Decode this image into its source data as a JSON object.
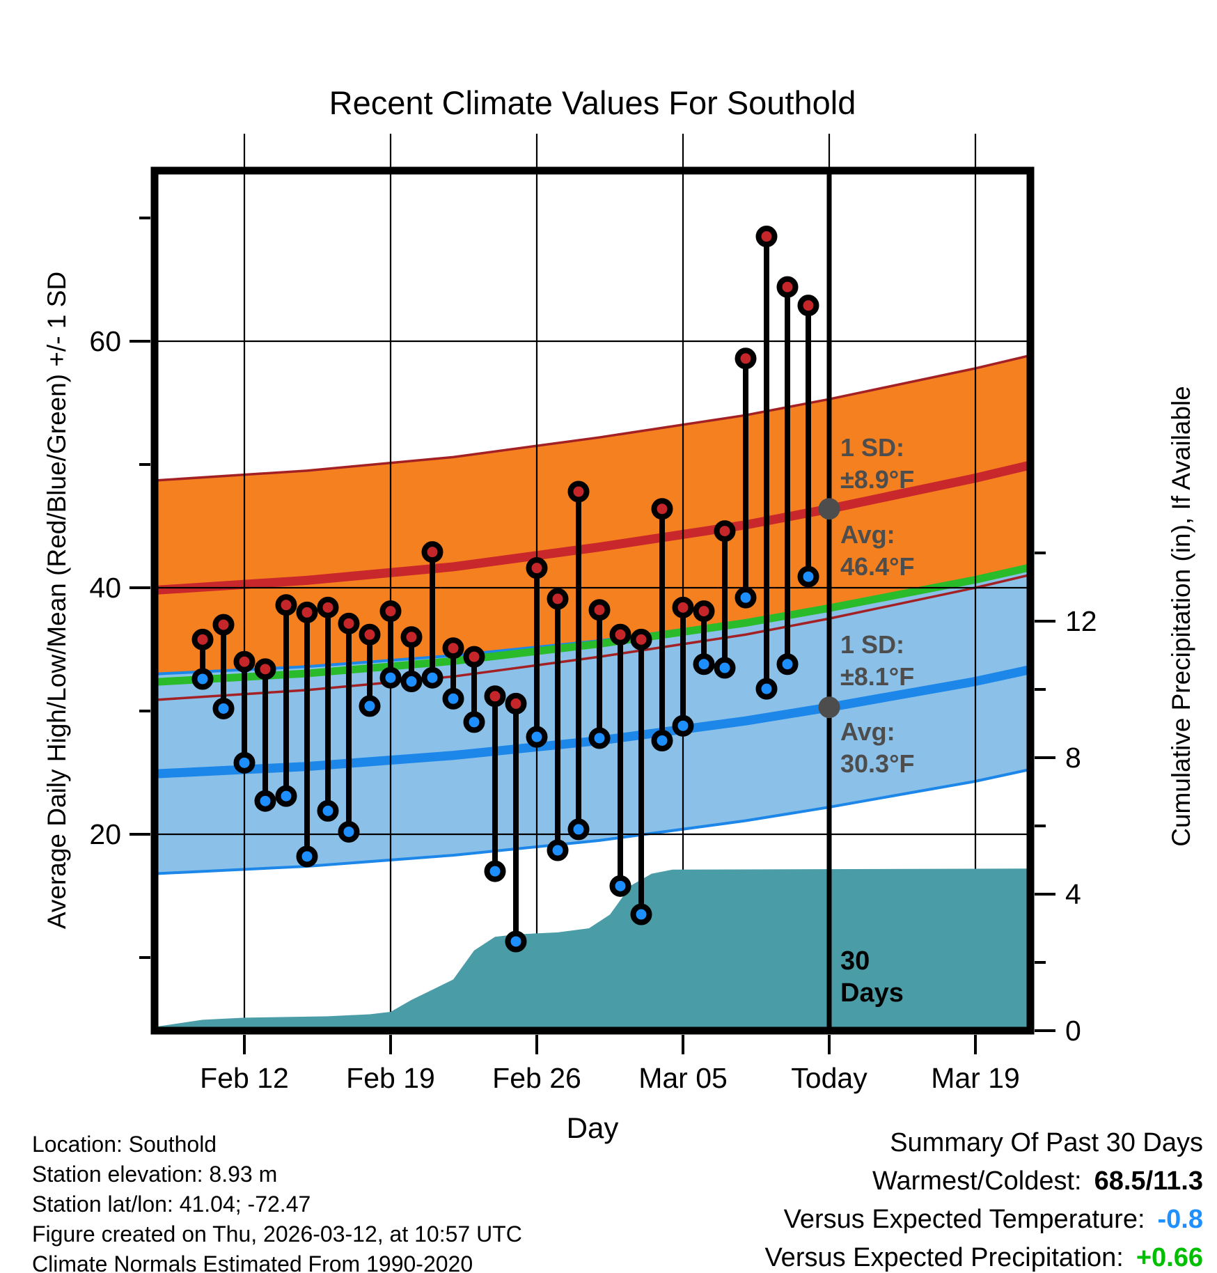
{
  "chart_data": {
    "type": "line",
    "subtype": "climate-daily-range-stems-with-climatology-bands-and-cumulative-precip",
    "title": "Recent Climate Values For Southold",
    "xlabel": "Day",
    "ylabel_left": "Average Daily High/Low/Mean (Red/Blue/Green) +/- 1 SD",
    "ylabel_right": "Cumulative Precipitation (in), If Available",
    "grid": "weekly vertical + 20F horizontal",
    "legend_position": "none",
    "x_ticks": [
      {
        "label": "Feb 12",
        "day_index": 2
      },
      {
        "label": "Feb 19",
        "day_index": 9
      },
      {
        "label": "Feb 26",
        "day_index": 16
      },
      {
        "label": "Mar 05",
        "day_index": 23
      },
      {
        "label": "Today",
        "day_index": 30
      },
      {
        "label": "Mar 19",
        "day_index": 37
      }
    ],
    "temp_axis": {
      "range_f": [
        4.1,
        73.9
      ],
      "major_ticks_labeled": [
        60,
        40,
        20
      ],
      "minor_ticks": [
        70,
        50,
        30,
        10
      ],
      "gridline_temps": [
        60,
        40,
        20
      ]
    },
    "precip_axis": {
      "major_ticks_labeled": [
        12,
        8,
        4,
        0
      ],
      "minor_ticks": [
        14,
        10,
        6,
        2
      ],
      "zero_at_plot_bottom": true
    },
    "days": [
      {
        "date": "Feb 10",
        "high": 35.8,
        "low": 32.6
      },
      {
        "date": "Feb 11",
        "high": 37.0,
        "low": 30.2
      },
      {
        "date": "Feb 12",
        "high": 34.0,
        "low": 25.8
      },
      {
        "date": "Feb 13",
        "high": 33.4,
        "low": 22.7
      },
      {
        "date": "Feb 14",
        "high": 38.6,
        "low": 23.1
      },
      {
        "date": "Feb 15",
        "high": 38.0,
        "low": 18.2
      },
      {
        "date": "Feb 16",
        "high": 38.4,
        "low": 21.9
      },
      {
        "date": "Feb 17",
        "high": 37.1,
        "low": 20.2
      },
      {
        "date": "Feb 18",
        "high": 36.2,
        "low": 30.4
      },
      {
        "date": "Feb 19",
        "high": 38.1,
        "low": 32.7
      },
      {
        "date": "Feb 20",
        "high": 36.0,
        "low": 32.4
      },
      {
        "date": "Feb 21",
        "high": 42.9,
        "low": 32.7
      },
      {
        "date": "Feb 22",
        "high": 35.1,
        "low": 31.0
      },
      {
        "date": "Feb 23",
        "high": 34.4,
        "low": 29.1
      },
      {
        "date": "Feb 24",
        "high": 31.2,
        "low": 17.0
      },
      {
        "date": "Feb 25",
        "high": 30.6,
        "low": 11.3
      },
      {
        "date": "Feb 26",
        "high": 41.6,
        "low": 27.9
      },
      {
        "date": "Feb 27",
        "high": 39.1,
        "low": 18.7
      },
      {
        "date": "Feb 28",
        "high": 47.8,
        "low": 20.4
      },
      {
        "date": "Mar 01",
        "high": 38.2,
        "low": 27.8
      },
      {
        "date": "Mar 02",
        "high": 36.2,
        "low": 15.8
      },
      {
        "date": "Mar 03",
        "high": 35.8,
        "low": 13.5
      },
      {
        "date": "Mar 04",
        "high": 46.4,
        "low": 27.6
      },
      {
        "date": "Mar 05",
        "high": 38.4,
        "low": 28.8
      },
      {
        "date": "Mar 06",
        "high": 38.1,
        "low": 33.8
      },
      {
        "date": "Mar 07",
        "high": 44.6,
        "low": 33.5
      },
      {
        "date": "Mar 08",
        "high": 58.6,
        "low": 39.2
      },
      {
        "date": "Mar 09",
        "high": 68.5,
        "low": 31.8
      },
      {
        "date": "Mar 10",
        "high": 64.4,
        "low": 33.8
      },
      {
        "date": "Mar 11",
        "high": 62.9,
        "low": 40.9
      }
    ],
    "climatology": {
      "sd_high_f": 8.9,
      "sd_low_f": 8.1,
      "high_mean_points": [
        [
          -2.3,
          39.8
        ],
        [
          5,
          40.6
        ],
        [
          12,
          41.7
        ],
        [
          19,
          43.3
        ],
        [
          26,
          45.1
        ],
        [
          30,
          46.4
        ],
        [
          37,
          48.9
        ],
        [
          40,
          50.1
        ]
      ],
      "low_mean_points": [
        [
          -2.3,
          24.9
        ],
        [
          5,
          25.5
        ],
        [
          12,
          26.4
        ],
        [
          19,
          27.6
        ],
        [
          26,
          29.2
        ],
        [
          30,
          30.3
        ],
        [
          37,
          32.4
        ],
        [
          40,
          33.5
        ]
      ]
    },
    "precip_cumulative_points": [
      [
        -2.4,
        0.1
      ],
      [
        0,
        0.32
      ],
      [
        2,
        0.38
      ],
      [
        6,
        0.42
      ],
      [
        8,
        0.48
      ],
      [
        9,
        0.55
      ],
      [
        10,
        0.9
      ],
      [
        11,
        1.2
      ],
      [
        12,
        1.5
      ],
      [
        13,
        2.35
      ],
      [
        14,
        2.75
      ],
      [
        15,
        2.82
      ],
      [
        17,
        2.88
      ],
      [
        18.5,
        3.0
      ],
      [
        19.5,
        3.4
      ],
      [
        20.5,
        4.25
      ],
      [
        21.5,
        4.6
      ],
      [
        22.5,
        4.72
      ],
      [
        39.7,
        4.75
      ]
    ],
    "annotations": {
      "high": {
        "sd_label": "1 SD:",
        "sd_value": "±8.9°F",
        "avg_label": "Avg:",
        "avg_value": "46.4°F",
        "avg_f": 46.4
      },
      "low": {
        "sd_label": "1 SD:",
        "sd_value": "±8.1°F",
        "avg_label": "Avg:",
        "avg_value": "30.3°F",
        "avg_f": 30.3
      }
    },
    "today_marker": {
      "day_index": 30,
      "label_lines": [
        "30",
        "Days"
      ]
    },
    "colors": {
      "high_band": "#F5801F",
      "high_band_edge": "#A32125",
      "high_mean_line": "#C8272B",
      "low_band": "#8BC0E8",
      "low_mean_line": "#1C87E8",
      "mean_line": "#2ABB2A",
      "precip_fill": "#4A9CA6",
      "high_dot": "#C4262A",
      "low_dot": "#1E8FFF",
      "stem": "#000000",
      "annotation_gray": "#4D4D4D"
    }
  },
  "footer": {
    "lines": [
      "Location: Southold",
      "Station elevation: 8.93 m",
      "Station lat/lon: 41.04; -72.47",
      "Figure created on Thu, 2026-03-12, at 10:57 UTC",
      "Climate Normals Estimated From 1990-2020"
    ]
  },
  "summary": {
    "title": "Summary Of Past 30 Days",
    "rows": [
      {
        "label": "Warmest/Coldest:",
        "value": "68.5/11.3",
        "color": "#000000"
      },
      {
        "label": "Versus Expected Temperature:",
        "value": "-0.8",
        "color": "#1E90FF"
      },
      {
        "label": "Versus Expected Precipitation:",
        "value": "+0.66",
        "color": "#00BE00"
      }
    ]
  }
}
